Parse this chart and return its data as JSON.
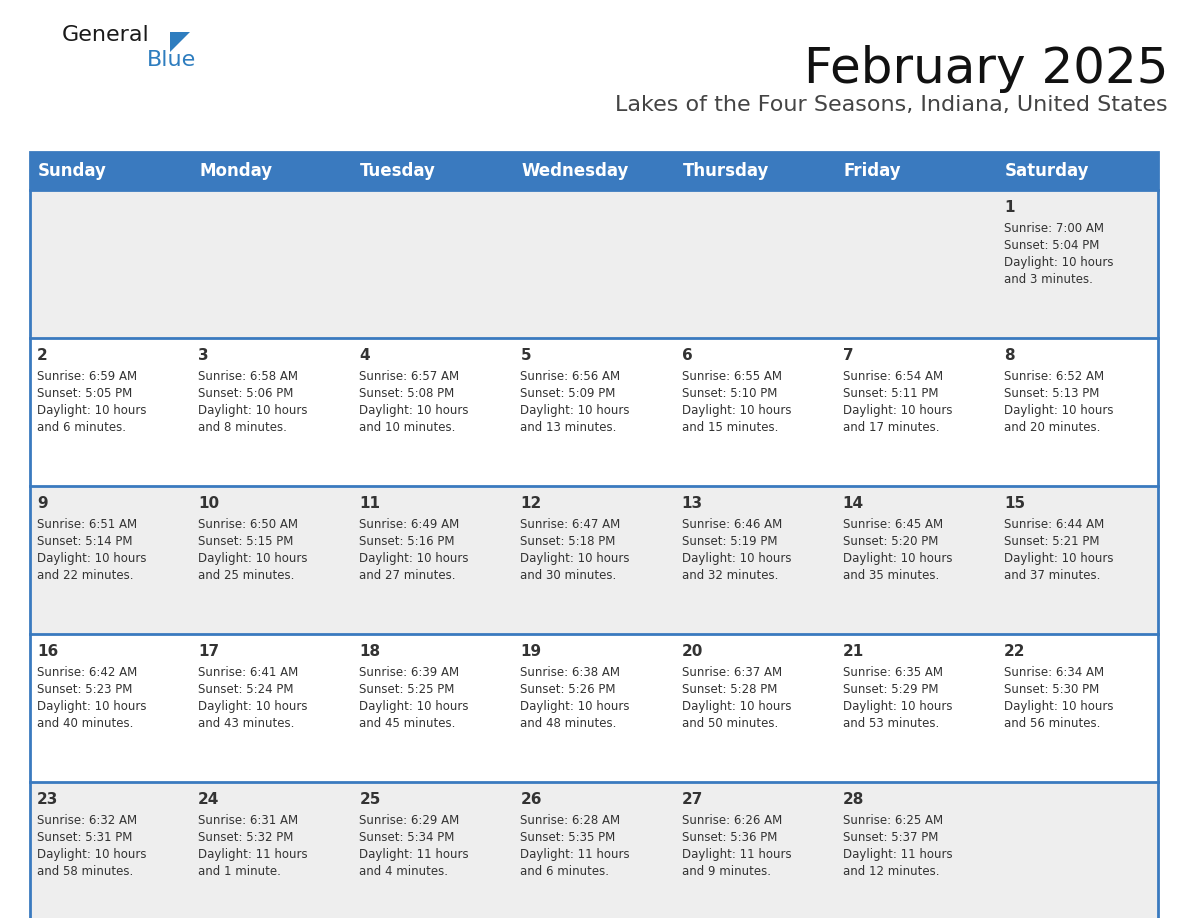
{
  "title": "February 2025",
  "subtitle": "Lakes of the Four Seasons, Indiana, United States",
  "header_color": "#3a7abf",
  "header_text_color": "#ffffff",
  "header_days": [
    "Sunday",
    "Monday",
    "Tuesday",
    "Wednesday",
    "Thursday",
    "Friday",
    "Saturday"
  ],
  "divider_color": "#3a7abf",
  "row_bg_odd": "#eeeeee",
  "row_bg_even": "#ffffff",
  "cell_text_color": "#333333",
  "days": [
    {
      "date": 1,
      "col": 6,
      "row": 0,
      "sunrise": "7:00 AM",
      "sunset": "5:04 PM",
      "daylight_line1": "Daylight: 10 hours",
      "daylight_line2": "and 3 minutes."
    },
    {
      "date": 2,
      "col": 0,
      "row": 1,
      "sunrise": "6:59 AM",
      "sunset": "5:05 PM",
      "daylight_line1": "Daylight: 10 hours",
      "daylight_line2": "and 6 minutes."
    },
    {
      "date": 3,
      "col": 1,
      "row": 1,
      "sunrise": "6:58 AM",
      "sunset": "5:06 PM",
      "daylight_line1": "Daylight: 10 hours",
      "daylight_line2": "and 8 minutes."
    },
    {
      "date": 4,
      "col": 2,
      "row": 1,
      "sunrise": "6:57 AM",
      "sunset": "5:08 PM",
      "daylight_line1": "Daylight: 10 hours",
      "daylight_line2": "and 10 minutes."
    },
    {
      "date": 5,
      "col": 3,
      "row": 1,
      "sunrise": "6:56 AM",
      "sunset": "5:09 PM",
      "daylight_line1": "Daylight: 10 hours",
      "daylight_line2": "and 13 minutes."
    },
    {
      "date": 6,
      "col": 4,
      "row": 1,
      "sunrise": "6:55 AM",
      "sunset": "5:10 PM",
      "daylight_line1": "Daylight: 10 hours",
      "daylight_line2": "and 15 minutes."
    },
    {
      "date": 7,
      "col": 5,
      "row": 1,
      "sunrise": "6:54 AM",
      "sunset": "5:11 PM",
      "daylight_line1": "Daylight: 10 hours",
      "daylight_line2": "and 17 minutes."
    },
    {
      "date": 8,
      "col": 6,
      "row": 1,
      "sunrise": "6:52 AM",
      "sunset": "5:13 PM",
      "daylight_line1": "Daylight: 10 hours",
      "daylight_line2": "and 20 minutes."
    },
    {
      "date": 9,
      "col": 0,
      "row": 2,
      "sunrise": "6:51 AM",
      "sunset": "5:14 PM",
      "daylight_line1": "Daylight: 10 hours",
      "daylight_line2": "and 22 minutes."
    },
    {
      "date": 10,
      "col": 1,
      "row": 2,
      "sunrise": "6:50 AM",
      "sunset": "5:15 PM",
      "daylight_line1": "Daylight: 10 hours",
      "daylight_line2": "and 25 minutes."
    },
    {
      "date": 11,
      "col": 2,
      "row": 2,
      "sunrise": "6:49 AM",
      "sunset": "5:16 PM",
      "daylight_line1": "Daylight: 10 hours",
      "daylight_line2": "and 27 minutes."
    },
    {
      "date": 12,
      "col": 3,
      "row": 2,
      "sunrise": "6:47 AM",
      "sunset": "5:18 PM",
      "daylight_line1": "Daylight: 10 hours",
      "daylight_line2": "and 30 minutes."
    },
    {
      "date": 13,
      "col": 4,
      "row": 2,
      "sunrise": "6:46 AM",
      "sunset": "5:19 PM",
      "daylight_line1": "Daylight: 10 hours",
      "daylight_line2": "and 32 minutes."
    },
    {
      "date": 14,
      "col": 5,
      "row": 2,
      "sunrise": "6:45 AM",
      "sunset": "5:20 PM",
      "daylight_line1": "Daylight: 10 hours",
      "daylight_line2": "and 35 minutes."
    },
    {
      "date": 15,
      "col": 6,
      "row": 2,
      "sunrise": "6:44 AM",
      "sunset": "5:21 PM",
      "daylight_line1": "Daylight: 10 hours",
      "daylight_line2": "and 37 minutes."
    },
    {
      "date": 16,
      "col": 0,
      "row": 3,
      "sunrise": "6:42 AM",
      "sunset": "5:23 PM",
      "daylight_line1": "Daylight: 10 hours",
      "daylight_line2": "and 40 minutes."
    },
    {
      "date": 17,
      "col": 1,
      "row": 3,
      "sunrise": "6:41 AM",
      "sunset": "5:24 PM",
      "daylight_line1": "Daylight: 10 hours",
      "daylight_line2": "and 43 minutes."
    },
    {
      "date": 18,
      "col": 2,
      "row": 3,
      "sunrise": "6:39 AM",
      "sunset": "5:25 PM",
      "daylight_line1": "Daylight: 10 hours",
      "daylight_line2": "and 45 minutes."
    },
    {
      "date": 19,
      "col": 3,
      "row": 3,
      "sunrise": "6:38 AM",
      "sunset": "5:26 PM",
      "daylight_line1": "Daylight: 10 hours",
      "daylight_line2": "and 48 minutes."
    },
    {
      "date": 20,
      "col": 4,
      "row": 3,
      "sunrise": "6:37 AM",
      "sunset": "5:28 PM",
      "daylight_line1": "Daylight: 10 hours",
      "daylight_line2": "and 50 minutes."
    },
    {
      "date": 21,
      "col": 5,
      "row": 3,
      "sunrise": "6:35 AM",
      "sunset": "5:29 PM",
      "daylight_line1": "Daylight: 10 hours",
      "daylight_line2": "and 53 minutes."
    },
    {
      "date": 22,
      "col": 6,
      "row": 3,
      "sunrise": "6:34 AM",
      "sunset": "5:30 PM",
      "daylight_line1": "Daylight: 10 hours",
      "daylight_line2": "and 56 minutes."
    },
    {
      "date": 23,
      "col": 0,
      "row": 4,
      "sunrise": "6:32 AM",
      "sunset": "5:31 PM",
      "daylight_line1": "Daylight: 10 hours",
      "daylight_line2": "and 58 minutes."
    },
    {
      "date": 24,
      "col": 1,
      "row": 4,
      "sunrise": "6:31 AM",
      "sunset": "5:32 PM",
      "daylight_line1": "Daylight: 11 hours",
      "daylight_line2": "and 1 minute."
    },
    {
      "date": 25,
      "col": 2,
      "row": 4,
      "sunrise": "6:29 AM",
      "sunset": "5:34 PM",
      "daylight_line1": "Daylight: 11 hours",
      "daylight_line2": "and 4 minutes."
    },
    {
      "date": 26,
      "col": 3,
      "row": 4,
      "sunrise": "6:28 AM",
      "sunset": "5:35 PM",
      "daylight_line1": "Daylight: 11 hours",
      "daylight_line2": "and 6 minutes."
    },
    {
      "date": 27,
      "col": 4,
      "row": 4,
      "sunrise": "6:26 AM",
      "sunset": "5:36 PM",
      "daylight_line1": "Daylight: 11 hours",
      "daylight_line2": "and 9 minutes."
    },
    {
      "date": 28,
      "col": 5,
      "row": 4,
      "sunrise": "6:25 AM",
      "sunset": "5:37 PM",
      "daylight_line1": "Daylight: 11 hours",
      "daylight_line2": "and 12 minutes."
    }
  ],
  "logo_text_general": "General",
  "logo_text_blue": "Blue",
  "logo_color_general": "#1a1a1a",
  "logo_color_blue": "#2e7dbf",
  "logo_triangle_color": "#2e7dbf",
  "title_fontsize": 36,
  "subtitle_fontsize": 16,
  "header_fontsize": 12,
  "day_num_fontsize": 11,
  "cell_fontsize": 8.5
}
